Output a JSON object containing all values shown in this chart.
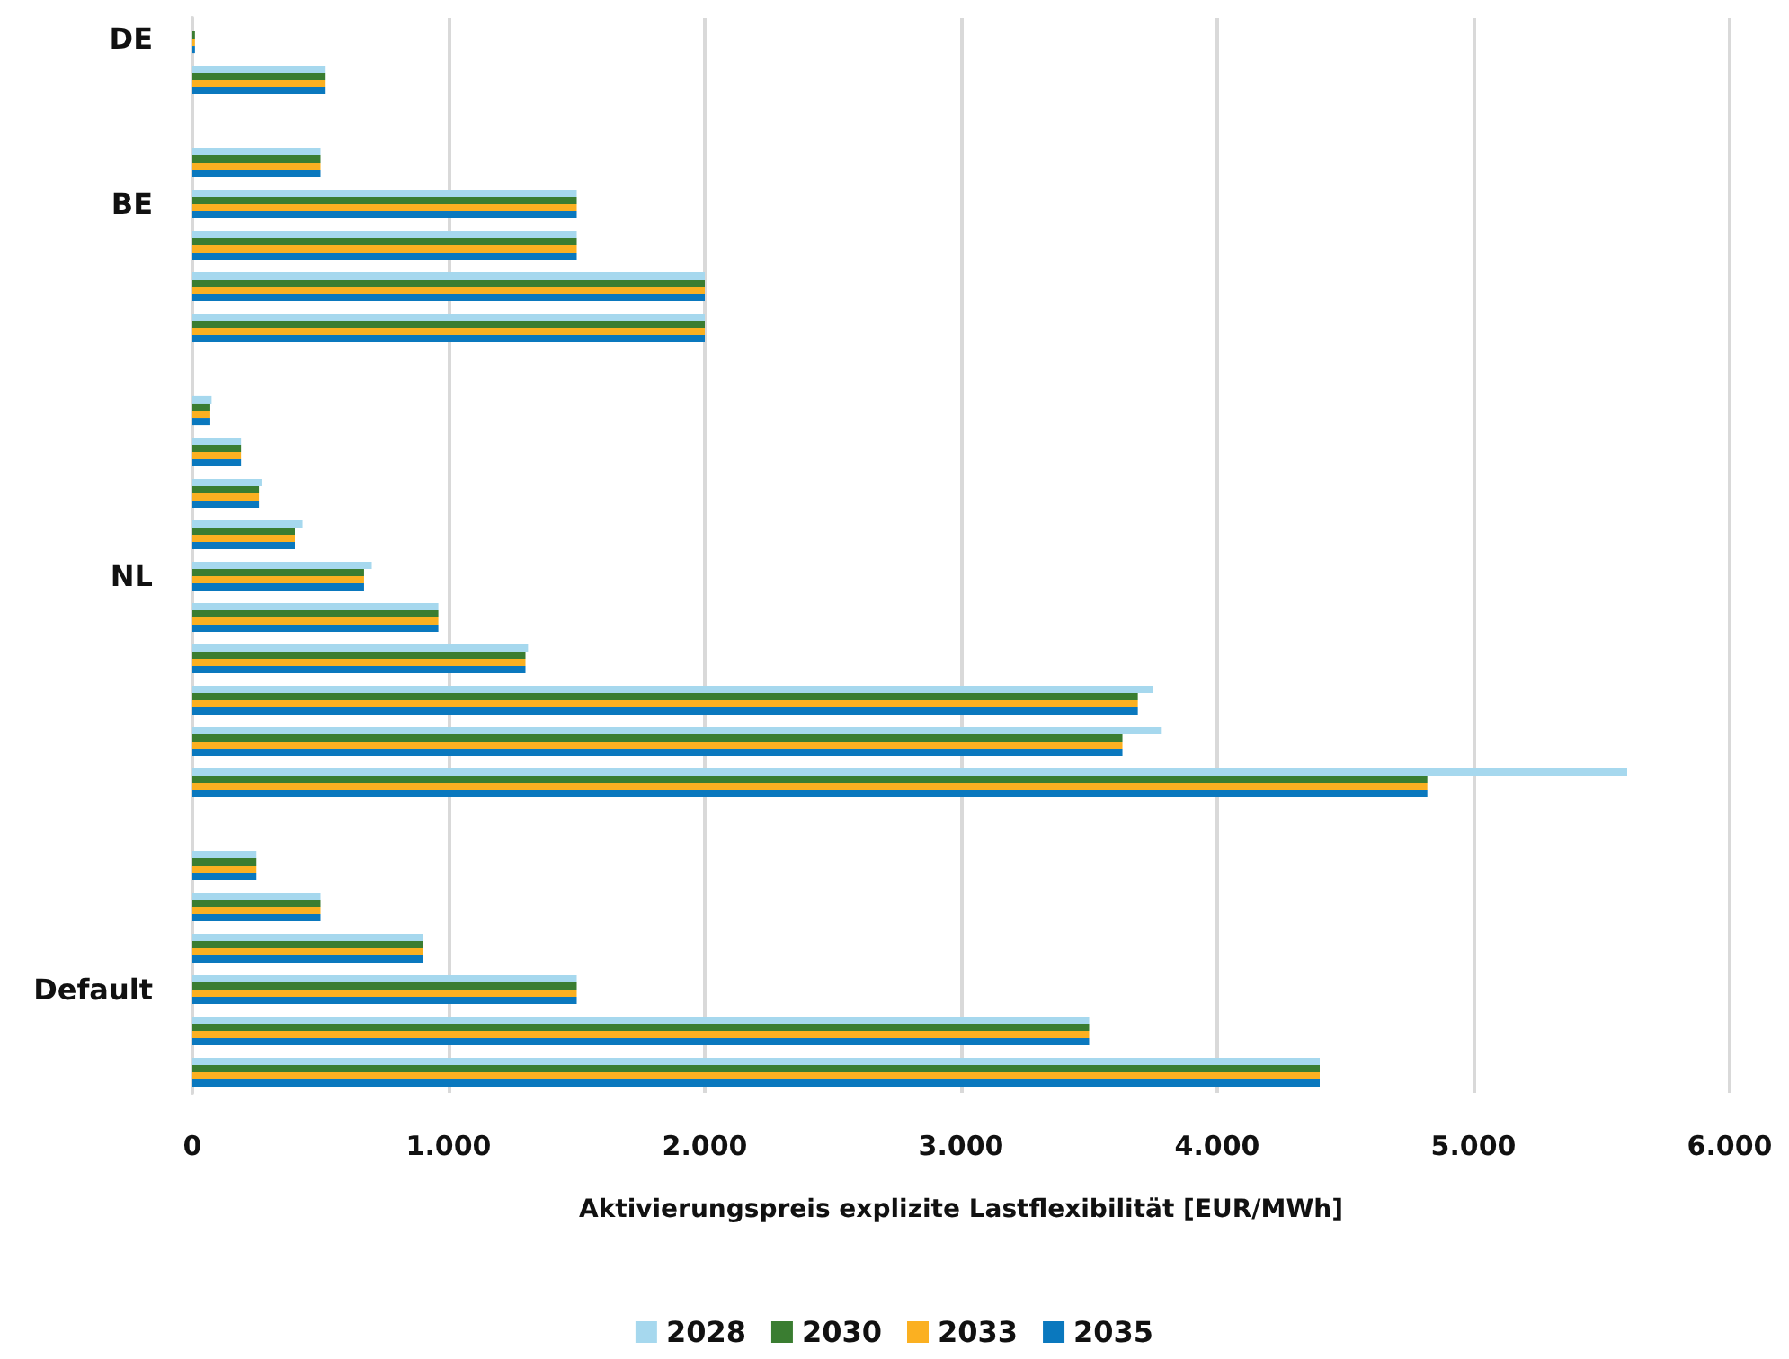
{
  "chart_data": {
    "type": "bar",
    "orientation": "horizontal",
    "xlabel": "Aktivierungspreis explizite Lastflexibilität [EUR/MWh]",
    "categories": [
      "DE",
      null,
      null,
      null,
      "BE",
      null,
      null,
      null,
      null,
      null,
      null,
      null,
      null,
      "NL",
      null,
      null,
      null,
      null,
      null,
      null,
      null,
      null,
      null,
      "Default",
      null,
      null
    ],
    "series": [
      {
        "name": "2028",
        "color": "#a6d8ee",
        "values": [
          null,
          520,
          null,
          500,
          1500,
          1500,
          2000,
          2000,
          null,
          75,
          190,
          270,
          430,
          700,
          960,
          1310,
          3750,
          3780,
          5600,
          null,
          250,
          500,
          900,
          1500,
          3500,
          4400
        ]
      },
      {
        "name": "2030",
        "color": "#3a7d31",
        "values": [
          10,
          520,
          null,
          500,
          1500,
          1500,
          2000,
          2000,
          null,
          70,
          190,
          260,
          400,
          670,
          960,
          1300,
          3690,
          3630,
          4820,
          null,
          250,
          500,
          900,
          1500,
          3500,
          4400
        ]
      },
      {
        "name": "2033",
        "color": "#fbb021",
        "values": [
          10,
          520,
          null,
          500,
          1500,
          1500,
          2000,
          2000,
          null,
          70,
          190,
          260,
          400,
          670,
          960,
          1300,
          3690,
          3630,
          4820,
          null,
          250,
          500,
          900,
          1500,
          3500,
          4400
        ]
      },
      {
        "name": "2035",
        "color": "#0a78be",
        "values": [
          10,
          520,
          null,
          500,
          1500,
          1500,
          2000,
          2000,
          null,
          70,
          190,
          260,
          400,
          670,
          960,
          1300,
          3690,
          3630,
          4820,
          null,
          250,
          500,
          900,
          1500,
          3500,
          4400
        ]
      }
    ],
    "xlim": [
      0,
      6000
    ],
    "xticks": [
      {
        "value": 0,
        "label": "0"
      },
      {
        "value": 1000,
        "label": "1.000"
      },
      {
        "value": 2000,
        "label": "2.000"
      },
      {
        "value": 3000,
        "label": "3.000"
      },
      {
        "value": 4000,
        "label": "4.000"
      },
      {
        "value": 5000,
        "label": "5.000"
      },
      {
        "value": 6000,
        "label": "6.000"
      }
    ],
    "grid": "x",
    "legend": "bottom"
  }
}
